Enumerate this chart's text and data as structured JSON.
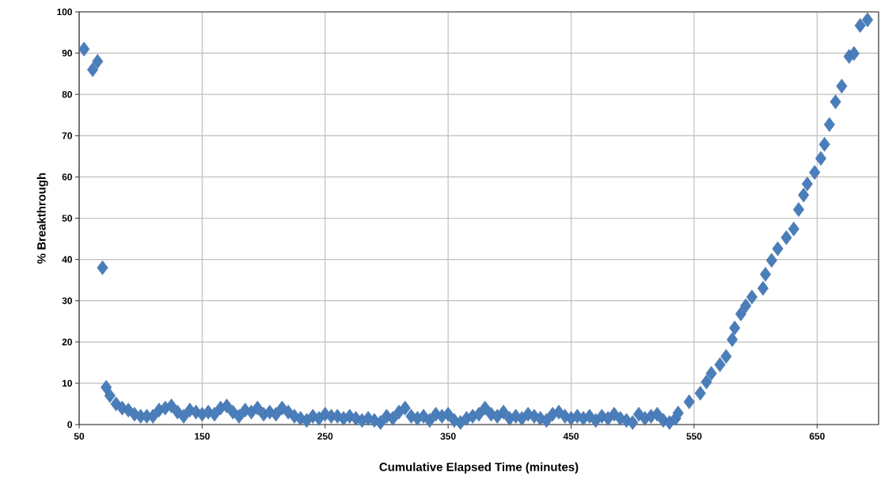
{
  "chart_data": {
    "type": "scatter",
    "xlabel": "Cumulative Elapsed Time (minutes)",
    "ylabel": "% Breakthrough",
    "xlim": [
      50,
      700
    ],
    "ylim": [
      0,
      100
    ],
    "xticks": [
      50,
      150,
      250,
      350,
      450,
      550,
      650
    ],
    "yticks": [
      0,
      10,
      20,
      30,
      40,
      50,
      60,
      70,
      80,
      90,
      100
    ],
    "grid": true,
    "marker": "diamond",
    "series": [
      {
        "color": "#4a7ebb",
        "x": [
          54,
          61,
          65,
          69,
          72,
          75,
          80,
          85,
          90,
          95,
          100,
          105,
          110,
          115,
          120,
          125,
          130,
          135,
          140,
          145,
          150,
          155,
          160,
          165,
          170,
          175,
          180,
          185,
          190,
          195,
          200,
          205,
          210,
          215,
          220,
          225,
          230,
          235,
          240,
          245,
          250,
          255,
          260,
          265,
          270,
          275,
          280,
          285,
          290,
          295,
          300,
          305,
          310,
          315,
          320,
          325,
          330,
          335,
          340,
          345,
          350,
          355,
          360,
          365,
          370,
          375,
          380,
          385,
          390,
          395,
          400,
          405,
          410,
          415,
          420,
          425,
          430,
          435,
          440,
          445,
          450,
          455,
          460,
          465,
          470,
          475,
          480,
          485,
          490,
          495,
          500,
          505,
          510,
          515,
          520,
          525,
          530,
          535,
          537,
          546,
          555,
          560,
          564,
          571,
          576,
          581,
          583,
          588,
          592,
          597,
          606,
          608,
          613,
          618,
          625,
          631,
          635,
          639,
          642,
          648,
          653,
          656,
          660,
          665,
          670,
          676,
          680,
          685,
          691
        ],
        "values": [
          91,
          86,
          88,
          38,
          9,
          7,
          5,
          4,
          3.5,
          2.5,
          2,
          2,
          2,
          3.5,
          4,
          4.5,
          3,
          2,
          3.5,
          3,
          2.5,
          3,
          2.5,
          4,
          4.5,
          3,
          2,
          3.5,
          3,
          4,
          2.5,
          3,
          2.5,
          4,
          3,
          2,
          1.5,
          1,
          2,
          1.5,
          2.5,
          2,
          2,
          1.5,
          2,
          1.5,
          1,
          1.5,
          1,
          0.5,
          2,
          1.5,
          3,
          4,
          2,
          1.5,
          2,
          1,
          2.5,
          2,
          2.5,
          1,
          0.5,
          1.5,
          2,
          2.5,
          4,
          2.5,
          2,
          3,
          1.5,
          2,
          1.5,
          2.5,
          2,
          1.5,
          1,
          2.5,
          3,
          2,
          1.5,
          2,
          1.5,
          2,
          1,
          2,
          1.5,
          2.5,
          1.5,
          1,
          0.5,
          2.5,
          1.5,
          2,
          2.5,
          1,
          0.5,
          1.5,
          2.8,
          5.5,
          7.6,
          10.3,
          12.4,
          14.5,
          16.5,
          20.6,
          23.4,
          26.8,
          28.8,
          30.9,
          33,
          36.4,
          39.8,
          42.6,
          45.3,
          47.4,
          52.1,
          55.6,
          58.3,
          61.1,
          64.5,
          67.9,
          72.7,
          78.2,
          82,
          89.2,
          89.9,
          96.7,
          98.1
        ]
      }
    ]
  }
}
